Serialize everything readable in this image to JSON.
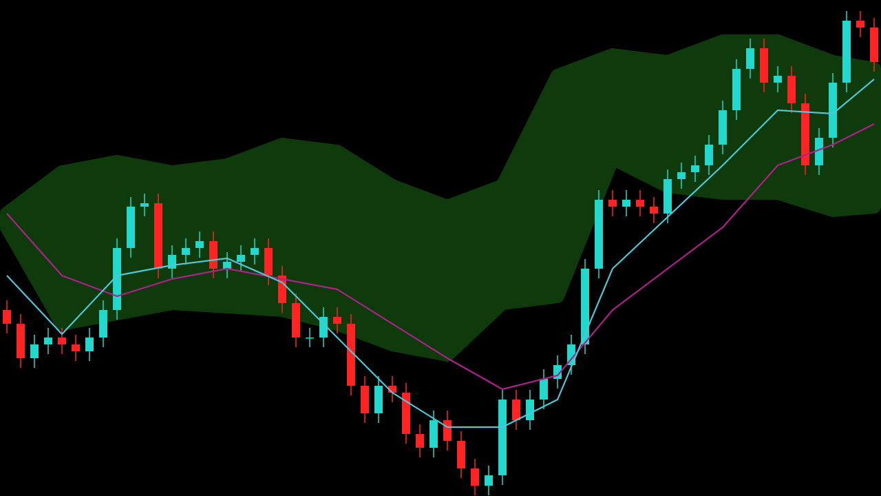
{
  "chart_data": {
    "type": "candlestick",
    "x": [
      0,
      1,
      2,
      3,
      4,
      5,
      6,
      7,
      8,
      9,
      10,
      11,
      12,
      13,
      14,
      15,
      16,
      17,
      18,
      19,
      20,
      21,
      22,
      23,
      24,
      25,
      26,
      27,
      28,
      29,
      30,
      31,
      32,
      33,
      34,
      35,
      36,
      37,
      38,
      39,
      40,
      41,
      42,
      43,
      44,
      45,
      46,
      47,
      48,
      49,
      50,
      51,
      52,
      53,
      54,
      55,
      56,
      57,
      58,
      59,
      60,
      61,
      62,
      63
    ],
    "open": [
      270,
      250,
      200,
      220,
      230,
      220,
      210,
      230,
      270,
      360,
      420,
      425,
      330,
      350,
      360,
      370,
      330,
      340,
      350,
      360,
      320,
      280,
      230,
      230,
      260,
      250,
      160,
      120,
      160,
      150,
      90,
      70,
      110,
      80,
      40,
      15,
      30,
      140,
      110,
      140,
      170,
      190,
      220,
      330,
      430,
      420,
      430,
      420,
      410,
      460,
      470,
      480,
      510,
      560,
      620,
      650,
      600,
      610,
      570,
      480,
      520,
      600,
      690,
      680
    ],
    "high": [
      284,
      264,
      234,
      244,
      244,
      234,
      244,
      284,
      374,
      434,
      439,
      439,
      364,
      374,
      384,
      384,
      354,
      364,
      374,
      374,
      334,
      294,
      244,
      274,
      274,
      264,
      174,
      174,
      174,
      164,
      104,
      124,
      124,
      94,
      54,
      44,
      154,
      154,
      154,
      184,
      204,
      234,
      344,
      444,
      444,
      444,
      444,
      434,
      474,
      484,
      494,
      524,
      574,
      634,
      664,
      664,
      624,
      624,
      584,
      534,
      614,
      704,
      704,
      694
    ],
    "low": [
      236,
      186,
      186,
      206,
      206,
      196,
      196,
      216,
      256,
      346,
      406,
      316,
      316,
      336,
      346,
      316,
      316,
      326,
      336,
      306,
      266,
      216,
      216,
      216,
      236,
      146,
      106,
      106,
      136,
      76,
      56,
      56,
      66,
      26,
      1,
      1,
      16,
      96,
      96,
      126,
      156,
      176,
      206,
      316,
      406,
      406,
      406,
      396,
      396,
      446,
      456,
      466,
      496,
      546,
      606,
      586,
      586,
      556,
      466,
      466,
      506,
      586,
      666,
      616
    ],
    "close": [
      250,
      200,
      220,
      230,
      220,
      210,
      230,
      270,
      360,
      420,
      425,
      330,
      350,
      360,
      370,
      330,
      340,
      350,
      360,
      320,
      280,
      230,
      230,
      260,
      250,
      160,
      120,
      160,
      150,
      90,
      70,
      110,
      80,
      40,
      15,
      30,
      140,
      110,
      140,
      170,
      190,
      220,
      330,
      430,
      420,
      430,
      420,
      410,
      460,
      470,
      480,
      510,
      560,
      620,
      650,
      600,
      610,
      570,
      480,
      520,
      600,
      690,
      680,
      630
    ],
    "up_color": "#22d8cc",
    "down_color": "#ff2424",
    "xlim": [
      -0.5,
      63.5
    ],
    "ylim": [
      0,
      720
    ],
    "cloud": {
      "x": [
        0,
        4,
        8,
        12,
        16,
        20,
        24,
        28,
        32,
        36,
        40,
        44,
        48,
        52,
        56,
        60,
        63
      ],
      "upper": [
        410,
        470,
        485,
        470,
        480,
        510,
        500,
        450,
        420,
        450,
        610,
        640,
        630,
        660,
        660,
        630,
        620
      ],
      "lower": [
        390,
        250,
        265,
        280,
        275,
        270,
        250,
        220,
        205,
        280,
        290,
        490,
        450,
        440,
        440,
        415,
        420
      ],
      "color": "#0e3a0c"
    },
    "lines": [
      {
        "x": [
          0,
          4,
          8,
          12,
          16,
          20,
          24,
          28,
          32,
          36,
          40,
          44,
          48,
          52,
          56,
          60,
          63
        ],
        "values": [
          410,
          320,
          290,
          315,
          330,
          315,
          300,
          250,
          200,
          155,
          175,
          270,
          330,
          390,
          480,
          510,
          540
        ],
        "color": "#b0208a"
      },
      {
        "x": [
          0,
          4,
          8,
          12,
          16,
          20,
          24,
          28,
          32,
          36,
          40,
          44,
          48,
          52,
          56,
          60,
          63
        ],
        "values": [
          320,
          235,
          320,
          335,
          345,
          310,
          230,
          150,
          100,
          100,
          140,
          330,
          405,
          480,
          560,
          555,
          605
        ],
        "color": "#4cc8d8"
      }
    ]
  }
}
